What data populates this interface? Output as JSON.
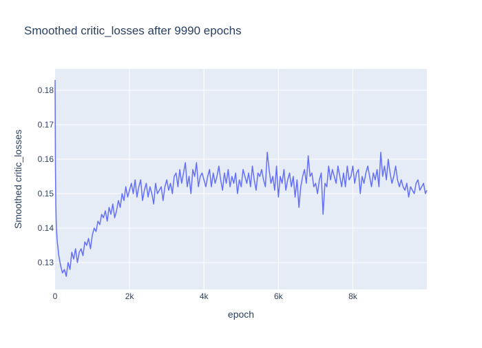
{
  "chart_data": {
    "type": "line",
    "title": "Smoothed critic_losses after 9990 epochs",
    "xlabel": "epoch",
    "ylabel": "Smoothed critic_losses",
    "xlim": [
      0,
      9990
    ],
    "ylim": [
      0.1222,
      0.1862
    ],
    "x_ticks": [
      {
        "value": 0,
        "label": "0"
      },
      {
        "value": 2000,
        "label": "2k"
      },
      {
        "value": 4000,
        "label": "4k"
      },
      {
        "value": 6000,
        "label": "6k"
      },
      {
        "value": 8000,
        "label": "8k"
      }
    ],
    "y_ticks": [
      {
        "value": 0.13,
        "label": "0.13"
      },
      {
        "value": 0.14,
        "label": "0.14"
      },
      {
        "value": 0.15,
        "label": "0.15"
      },
      {
        "value": 0.16,
        "label": "0.16"
      },
      {
        "value": 0.17,
        "label": "0.17"
      },
      {
        "value": 0.18,
        "label": "0.18"
      }
    ],
    "grid": true,
    "legend": "none",
    "colors": {
      "plot_bg": "#e5ecf6",
      "grid": "#ffffff",
      "line": "#636efa",
      "text": "#2a3f5f"
    },
    "series": [
      {
        "x": [
          0,
          10,
          20,
          30,
          40,
          60,
          80,
          100,
          150,
          200,
          250,
          300,
          350,
          400,
          450,
          500,
          550,
          600,
          650,
          700,
          750,
          800,
          850,
          900,
          950,
          1000,
          1050,
          1100,
          1150,
          1200,
          1250,
          1300,
          1350,
          1400,
          1450,
          1500,
          1550,
          1600,
          1650,
          1700,
          1750,
          1800,
          1850,
          1900,
          1950,
          2000,
          2050,
          2100,
          2150,
          2200,
          2250,
          2300,
          2350,
          2400,
          2450,
          2500,
          2550,
          2600,
          2650,
          2700,
          2750,
          2800,
          2850,
          2900,
          2950,
          3000,
          3050,
          3100,
          3150,
          3200,
          3250,
          3300,
          3350,
          3400,
          3450,
          3500,
          3550,
          3600,
          3650,
          3700,
          3750,
          3800,
          3850,
          3900,
          3950,
          4000,
          4050,
          4100,
          4150,
          4200,
          4250,
          4300,
          4350,
          4400,
          4450,
          4500,
          4550,
          4600,
          4650,
          4700,
          4750,
          4800,
          4850,
          4900,
          4950,
          5000,
          5050,
          5100,
          5150,
          5200,
          5250,
          5300,
          5350,
          5400,
          5450,
          5500,
          5550,
          5600,
          5650,
          5700,
          5750,
          5800,
          5850,
          5900,
          5950,
          6000,
          6050,
          6100,
          6150,
          6200,
          6250,
          6300,
          6350,
          6400,
          6450,
          6500,
          6550,
          6600,
          6650,
          6700,
          6750,
          6800,
          6850,
          6900,
          6950,
          7000,
          7050,
          7100,
          7150,
          7200,
          7250,
          7300,
          7350,
          7400,
          7450,
          7500,
          7550,
          7600,
          7650,
          7700,
          7750,
          7800,
          7850,
          7900,
          7950,
          8000,
          8050,
          8100,
          8150,
          8200,
          8250,
          8300,
          8350,
          8400,
          8450,
          8500,
          8550,
          8600,
          8650,
          8700,
          8750,
          8800,
          8850,
          8900,
          8950,
          9000,
          9050,
          9100,
          9150,
          9200,
          9250,
          9300,
          9350,
          9400,
          9450,
          9500,
          9550,
          9600,
          9650,
          9700,
          9750,
          9800,
          9850,
          9900,
          9950,
          9990
        ],
        "y": [
          0.183,
          0.158,
          0.147,
          0.142,
          0.139,
          0.136,
          0.134,
          0.132,
          0.129,
          0.127,
          0.128,
          0.126,
          0.13,
          0.128,
          0.133,
          0.131,
          0.134,
          0.13,
          0.133,
          0.134,
          0.132,
          0.136,
          0.135,
          0.137,
          0.134,
          0.138,
          0.14,
          0.139,
          0.142,
          0.141,
          0.144,
          0.143,
          0.145,
          0.142,
          0.146,
          0.144,
          0.147,
          0.143,
          0.145,
          0.148,
          0.146,
          0.15,
          0.148,
          0.152,
          0.149,
          0.151,
          0.153,
          0.15,
          0.154,
          0.149,
          0.152,
          0.154,
          0.148,
          0.151,
          0.153,
          0.149,
          0.152,
          0.15,
          0.147,
          0.153,
          0.15,
          0.151,
          0.152,
          0.148,
          0.152,
          0.154,
          0.151,
          0.153,
          0.15,
          0.155,
          0.156,
          0.152,
          0.157,
          0.153,
          0.156,
          0.159,
          0.152,
          0.155,
          0.15,
          0.157,
          0.155,
          0.159,
          0.152,
          0.155,
          0.156,
          0.154,
          0.152,
          0.155,
          0.157,
          0.152,
          0.156,
          0.153,
          0.155,
          0.158,
          0.154,
          0.151,
          0.156,
          0.153,
          0.157,
          0.152,
          0.155,
          0.153,
          0.156,
          0.15,
          0.154,
          0.152,
          0.157,
          0.155,
          0.153,
          0.156,
          0.152,
          0.158,
          0.154,
          0.151,
          0.156,
          0.155,
          0.157,
          0.154,
          0.152,
          0.162,
          0.157,
          0.153,
          0.155,
          0.151,
          0.158,
          0.149,
          0.155,
          0.153,
          0.157,
          0.151,
          0.154,
          0.156,
          0.152,
          0.155,
          0.149,
          0.154,
          0.146,
          0.152,
          0.155,
          0.157,
          0.153,
          0.161,
          0.155,
          0.156,
          0.152,
          0.153,
          0.15,
          0.154,
          0.156,
          0.144,
          0.153,
          0.152,
          0.158,
          0.154,
          0.157,
          0.155,
          0.153,
          0.158,
          0.155,
          0.152,
          0.156,
          0.152,
          0.158,
          0.154,
          0.155,
          0.158,
          0.153,
          0.156,
          0.157,
          0.15,
          0.155,
          0.153,
          0.156,
          0.158,
          0.155,
          0.152,
          0.156,
          0.154,
          0.157,
          0.152,
          0.162,
          0.155,
          0.158,
          0.154,
          0.16,
          0.156,
          0.153,
          0.155,
          0.158,
          0.154,
          0.152,
          0.154,
          0.152,
          0.151,
          0.153,
          0.149,
          0.152,
          0.151,
          0.15,
          0.153,
          0.154,
          0.151,
          0.152,
          0.153,
          0.15,
          0.151
        ]
      }
    ]
  }
}
